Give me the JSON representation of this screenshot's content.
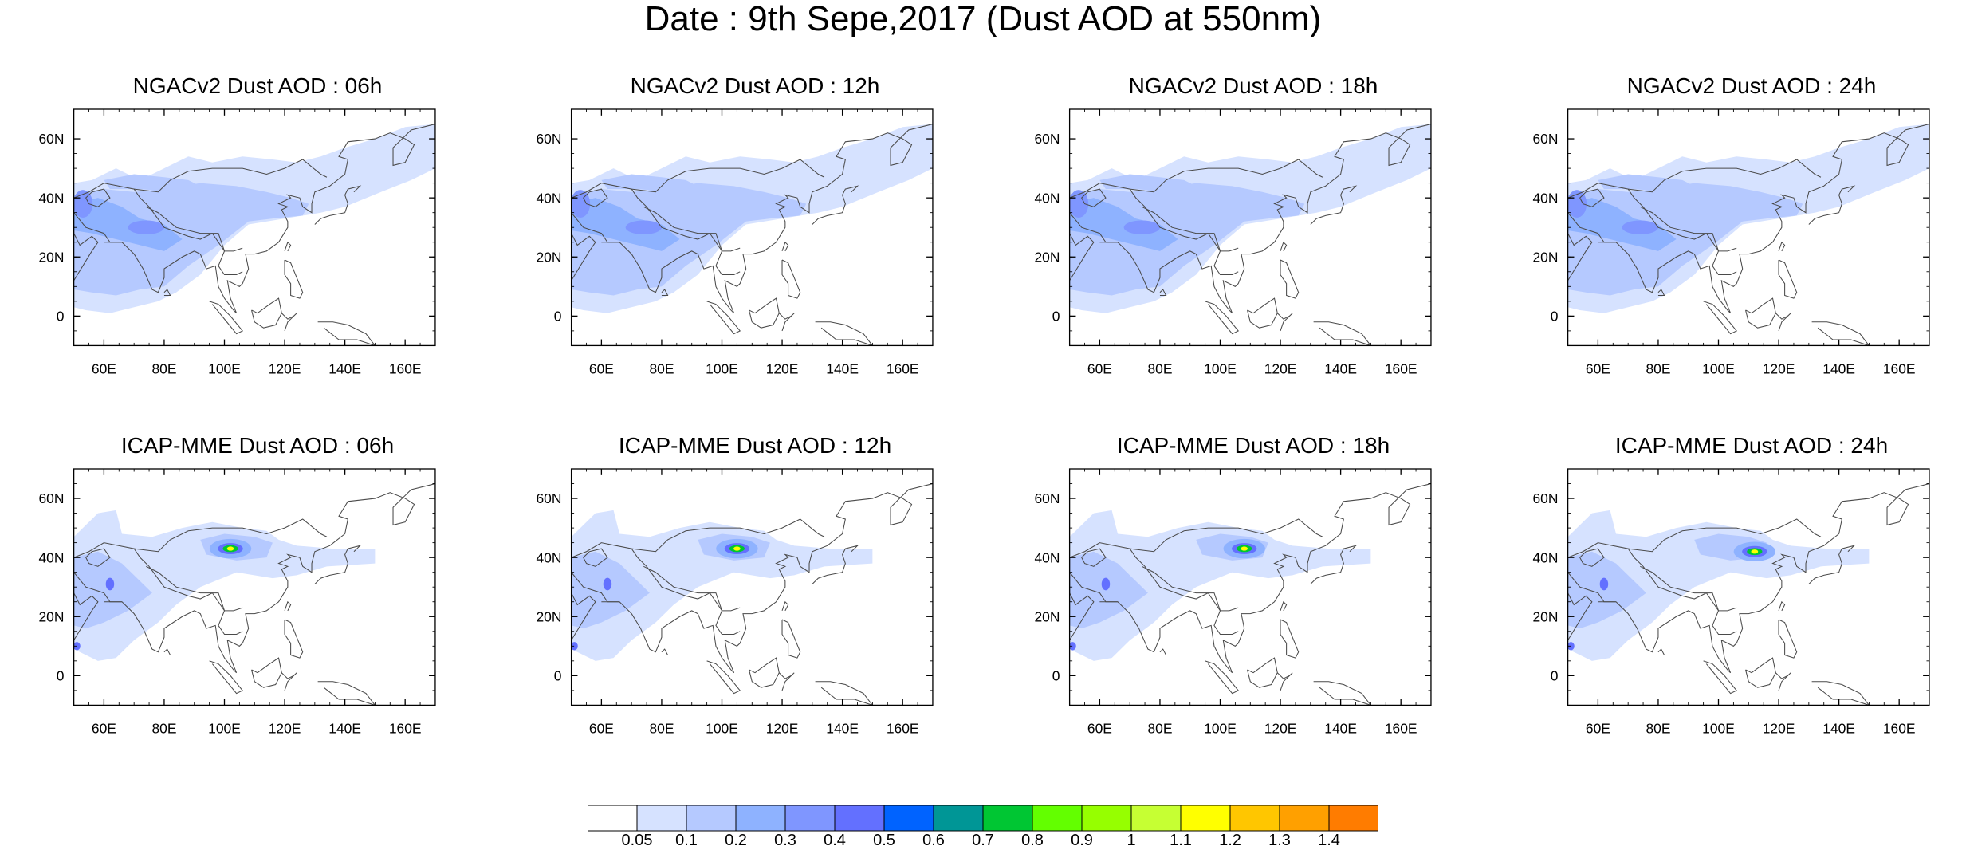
{
  "title": "Date : 9th Sepe,2017 (Dust AOD at 550nm)",
  "map_extent": {
    "lon": [
      50,
      170
    ],
    "lat": [
      -10,
      70
    ]
  },
  "lon_ticks": [
    "60E",
    "80E",
    "100E",
    "120E",
    "140E",
    "160E"
  ],
  "lon_tick_values": [
    60,
    80,
    100,
    120,
    140,
    160
  ],
  "lat_ticks": [
    "60N",
    "40N",
    "20N",
    "0"
  ],
  "lat_tick_values": [
    60,
    40,
    20,
    0
  ],
  "colors": {
    "levels": [
      "#ffffff",
      "#d6e2ff",
      "#b5c9ff",
      "#8eb2ff",
      "#7f96ff",
      "#6370ff",
      "#0063ff",
      "#009696",
      "#00c633",
      "#63ff00",
      "#96ff00",
      "#c6ff33",
      "#ffff00",
      "#ffc600",
      "#ffa000",
      "#ff7c00",
      "#ff1900"
    ],
    "coast": "#4a4a4a"
  },
  "colorbar": {
    "labels": [
      "0.05",
      "0.1",
      "0.2",
      "0.3",
      "0.4",
      "0.5",
      "0.6",
      "0.7",
      "0.8",
      "0.9",
      "1",
      "1.1",
      "1.2",
      "1.3",
      "1.4"
    ],
    "bins": 16
  },
  "panels": [
    {
      "title": "NGACv2 Dust AOD : 06h",
      "model": "ngac"
    },
    {
      "title": "NGACv2 Dust AOD : 12h",
      "model": "ngac"
    },
    {
      "title": "NGACv2 Dust AOD : 18h",
      "model": "ngac"
    },
    {
      "title": "NGACv2 Dust AOD : 24h",
      "model": "ngac"
    },
    {
      "title": "ICAP-MME Dust AOD : 06h",
      "model": "icap",
      "hotspot": [
        102,
        43
      ]
    },
    {
      "title": "ICAP-MME Dust AOD : 12h",
      "model": "icap",
      "hotspot": [
        105,
        43
      ]
    },
    {
      "title": "ICAP-MME Dust AOD : 18h",
      "model": "icap",
      "hotspot": [
        108,
        43
      ]
    },
    {
      "title": "ICAP-MME Dust AOD : 24h",
      "model": "icap",
      "hotspot": [
        112,
        42
      ]
    }
  ]
}
